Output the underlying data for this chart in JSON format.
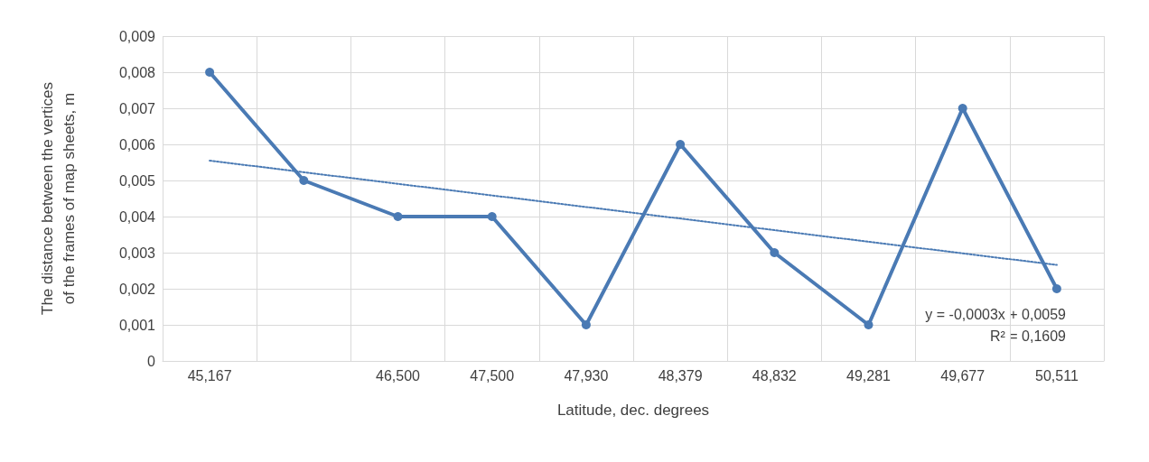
{
  "chart_data": {
    "type": "line",
    "xlabel": "Latitude, dec. degrees",
    "ylabel": "The distance between the vertices of the frames of map sheets, m",
    "categories": [
      "45,167",
      null,
      "46,500",
      "47,500",
      "47,930",
      "48,379",
      "48,832",
      "49,281",
      "49,677",
      "50,511"
    ],
    "series": [
      {
        "color": "#4a7ab4",
        "values": [
          0.008,
          0.005,
          0.004,
          0.004,
          0.001,
          0.006,
          0.003,
          0.001,
          0.007,
          0.002
        ],
        "marker": "circle",
        "line_style": "solid"
      },
      {
        "type": "line",
        "color": "#4a7ab4",
        "x": [
          "45,167",
          "50,511"
        ],
        "values": [
          0.00555,
          0.00266
        ],
        "marker": "none",
        "line_style": "dotted"
      }
    ],
    "ylim": [
      0,
      0.009
    ],
    "yticks": [
      0,
      {
        "value": 0.001,
        "label": "0,001"
      },
      {
        "value": 0.002,
        "label": "0,002"
      },
      {
        "value": 0.003,
        "label": "0,003"
      },
      {
        "value": 0.004,
        "label": "0,004"
      },
      {
        "value": 0.005,
        "label": "0,005"
      },
      {
        "value": 0.006,
        "label": "0,006"
      },
      {
        "value": 0.007,
        "label": "0,007"
      },
      {
        "value": 0.008,
        "label": "0,008"
      },
      {
        "value": 0.009,
        "label": "0,009"
      }
    ],
    "grid": true,
    "annotations": [
      "y = -0,0003x + 0,0059",
      "R² = 0,1609"
    ]
  }
}
